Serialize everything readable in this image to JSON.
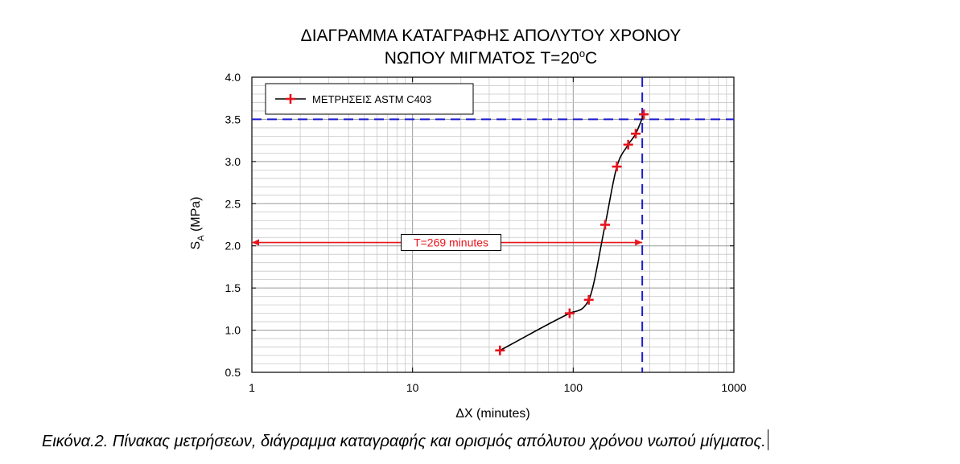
{
  "chart_data": {
    "type": "line",
    "title_line1": "ΔΙΑΓΡΑΜΜΑ ΚΑΤΑΓΡΑΦΗΣ ΑΠΟΛΥΤΟΥ ΧΡΟΝΟΥ",
    "title_line2_prefix": "ΝΩΠΟΥ ΜΙΓΜΑΤΟΣ T=20",
    "title_line2_sup": "o",
    "title_line2_suffix": "C",
    "xlabel": "ΔX (minutes)",
    "ylabel_main": "S",
    "ylabel_sub": "A",
    "ylabel_unit": " (MPa)",
    "xscale": "log",
    "xlim": [
      1,
      1000
    ],
    "ylim": [
      0.5,
      4.0
    ],
    "x_ticks": [
      1,
      10,
      100,
      1000
    ],
    "x_tick_labels": [
      "1",
      "10",
      "100",
      "1000"
    ],
    "y_ticks": [
      0.5,
      1.0,
      1.5,
      2.0,
      2.5,
      3.0,
      3.5,
      4.0
    ],
    "y_tick_labels": [
      "0.5",
      "1.0",
      "1.5",
      "2.0",
      "2.5",
      "3.0",
      "3.5",
      "4.0"
    ],
    "grid": true,
    "legend_position": "top-left",
    "series": [
      {
        "name": "ΜΕΤΡΗΣΕΙΣ ASTM C403",
        "color": "#e8141c",
        "line_color": "#000000",
        "marker": "plus",
        "points": [
          {
            "x": 35,
            "y": 0.76
          },
          {
            "x": 95,
            "y": 1.2
          },
          {
            "x": 125,
            "y": 1.36
          },
          {
            "x": 158,
            "y": 2.25
          },
          {
            "x": 187,
            "y": 2.94
          },
          {
            "x": 220,
            "y": 3.2
          },
          {
            "x": 245,
            "y": 3.33
          },
          {
            "x": 275,
            "y": 3.56
          }
        ]
      }
    ],
    "reference_lines": {
      "threshold_y": 3.5,
      "time_x": 269,
      "color": "#1c1cd0"
    },
    "annotation": {
      "text": "T=269 minutes",
      "y": 2.04,
      "x_from": 1,
      "x_to": 269,
      "color": "#e8141c"
    },
    "caption": "Εικόνα.2. Πίνακας μετρήσεων, διάγραμμα καταγραφής και ορισμός απόλυτου χρόνου νωπού μίγματος."
  }
}
